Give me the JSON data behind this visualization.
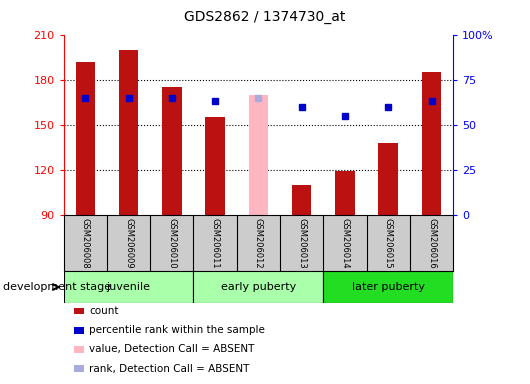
{
  "title": "GDS2862 / 1374730_at",
  "samples": [
    "GSM206008",
    "GSM206009",
    "GSM206010",
    "GSM206011",
    "GSM206012",
    "GSM206013",
    "GSM206014",
    "GSM206015",
    "GSM206016"
  ],
  "count_values": [
    192,
    200,
    175,
    155,
    null,
    110,
    119,
    138,
    185
  ],
  "count_absent_values": [
    null,
    null,
    null,
    null,
    170,
    null,
    null,
    null,
    null
  ],
  "rank_values": [
    65,
    65,
    65,
    63,
    null,
    60,
    55,
    60,
    63
  ],
  "rank_absent_values": [
    null,
    null,
    null,
    null,
    65,
    null,
    null,
    null,
    null
  ],
  "ylim_left": [
    90,
    210
  ],
  "ylim_right": [
    0,
    100
  ],
  "yticks_left": [
    90,
    120,
    150,
    180,
    210
  ],
  "yticks_right": [
    0,
    25,
    50,
    75,
    100
  ],
  "ytick_labels_right": [
    "0",
    "25",
    "50",
    "75",
    "100%"
  ],
  "bar_width": 0.45,
  "count_color": "#BB1111",
  "count_absent_color": "#FFB6C1",
  "rank_color": "#0000CC",
  "rank_absent_color": "#AAAADD",
  "gray_bg": "#CCCCCC",
  "group_defs": [
    {
      "start": 0,
      "end": 2,
      "label": "juvenile",
      "color": "#AAFFAA"
    },
    {
      "start": 3,
      "end": 5,
      "label": "early puberty",
      "color": "#AAFFAA"
    },
    {
      "start": 6,
      "end": 8,
      "label": "later puberty",
      "color": "#22DD22"
    }
  ],
  "legend_items": [
    {
      "label": "count",
      "color": "#BB1111"
    },
    {
      "label": "percentile rank within the sample",
      "color": "#0000CC"
    },
    {
      "label": "value, Detection Call = ABSENT",
      "color": "#FFB6C1"
    },
    {
      "label": "rank, Detection Call = ABSENT",
      "color": "#AAAADD"
    }
  ]
}
